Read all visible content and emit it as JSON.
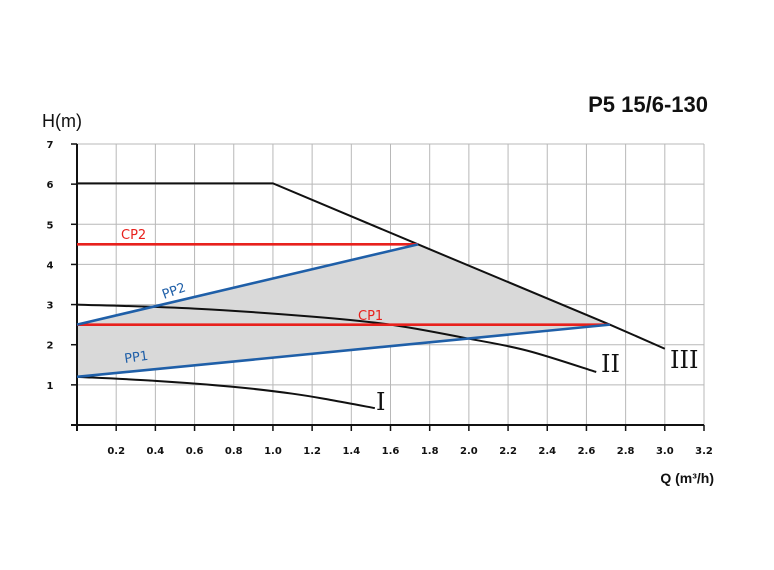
{
  "title": "P5 15/6-130",
  "chart_data": {
    "type": "line",
    "title": "P5 15/6-130",
    "ylabel": "H(m)",
    "xlabel": "Q (m³/h)",
    "xlim": [
      0,
      3.2
    ],
    "ylim": [
      0,
      7
    ],
    "x_ticks": [
      "0.2",
      "0.4",
      "0.6",
      "0.8",
      "1.0",
      "1.2",
      "1.4",
      "1.6",
      "1.8",
      "2.0",
      "2.2",
      "2.4",
      "2.6",
      "2.8",
      "3.0",
      "3.2"
    ],
    "y_ticks": [
      "1",
      "2",
      "3",
      "4",
      "5",
      "6",
      "7"
    ],
    "grid": true,
    "curves": [
      {
        "name": "I",
        "color": "#111111",
        "x": [
          0,
          0.4,
          0.8,
          1.1,
          1.3,
          1.52
        ],
        "y": [
          1.2,
          1.1,
          0.95,
          0.78,
          0.62,
          0.42
        ]
      },
      {
        "name": "II",
        "color": "#111111",
        "x": [
          0,
          0.6,
          1.2,
          1.6,
          2.0,
          2.3,
          2.65
        ],
        "y": [
          3.0,
          2.9,
          2.7,
          2.5,
          2.15,
          1.85,
          1.32
        ]
      },
      {
        "name": "III",
        "color": "#111111",
        "x": [
          0,
          1.0,
          1.74,
          2.72,
          3.0
        ],
        "y": [
          6.02,
          6.02,
          4.5,
          2.5,
          1.9
        ]
      }
    ],
    "constant_pressure": [
      {
        "name": "CP2",
        "color": "#e8211d",
        "x": [
          0,
          1.74
        ],
        "y": [
          4.5,
          4.5
        ]
      },
      {
        "name": "CP1",
        "color": "#e8211d",
        "x": [
          0,
          2.72
        ],
        "y": [
          2.5,
          2.5
        ]
      }
    ],
    "proportional_pressure": [
      {
        "name": "PP2",
        "color": "#1f5fa8",
        "x": [
          0,
          1.74
        ],
        "y": [
          2.5,
          4.5
        ]
      },
      {
        "name": "PP1",
        "color": "#1f5fa8",
        "x": [
          0,
          2.72
        ],
        "y": [
          1.2,
          2.5
        ]
      }
    ],
    "shaded_region": {
      "color": "#d9d9d9",
      "x": [
        0,
        1.74,
        2.72,
        0
      ],
      "y": [
        2.5,
        4.5,
        2.5,
        1.2
      ]
    }
  }
}
